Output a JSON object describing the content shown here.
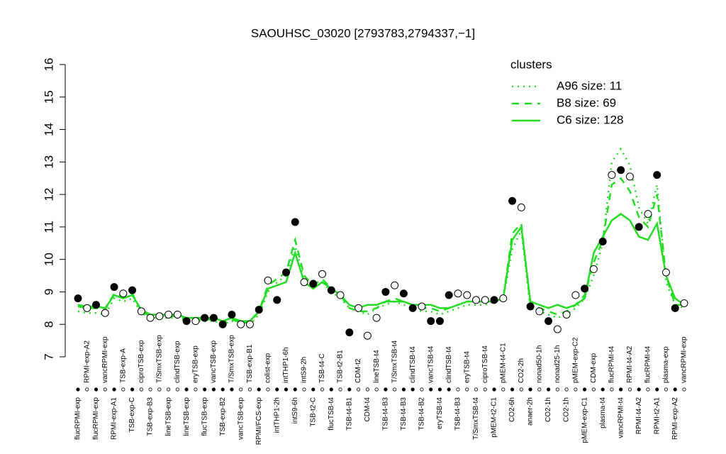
{
  "chart_data": {
    "type": "line",
    "title": "SAOUHSC_03020 [2793783,2794337,−1]",
    "legend_title": "clusters",
    "ylim": [
      7,
      16
    ],
    "yticks": [
      7,
      8,
      9,
      10,
      11,
      12,
      13,
      14,
      15,
      16
    ],
    "categories": [
      "flucRPMI-exp",
      "RPMI-exp-A2",
      "flucRPMI-exp",
      "vancRPMI-exp",
      "RPMI-exp-A1",
      "TSB-exp-A",
      "TSB-exp-C",
      "ciproTSB-exp",
      "TSB-exp-B3",
      "T/SmxTSB-exp",
      "lineTSB-exp",
      "clindTSB-exp",
      "lineTSB-exp",
      "eryTSB-exp",
      "flucTSB-exp",
      "vancTSB-exp",
      "TSB-exp-B2",
      "T/SmxTSB-exp",
      "vancTSB-exp",
      "TSB-exp-B1",
      "RPMI/FCS-exp",
      "colist-exp",
      "intTHP1-2h",
      "intTHP1-6h",
      "intS9-6h",
      "intS9-2h",
      "TSB-t2-C",
      "TSB-t4-C",
      "flucTSB-t4",
      "TSB-t2-B1",
      "TSB-t4-B1",
      "CDM-t2",
      "CDM-t4",
      "lineTSB-t4",
      "TSB-t4-B3",
      "T/SmxTSB-t4",
      "TSB-t4-B3",
      "clindTSB-t4",
      "TSB-t4-B2",
      "vancTSB-t4",
      "eryTSB-t4",
      "clindTSB-t4",
      "TSB-t4-B3",
      "eryTSB-t4",
      "T/SmxTSB-t4",
      "ciproTSB-t4",
      "pMEM-t2-C1",
      "pMEM-t4-C1",
      "CO2-6h",
      "CO2-2h",
      "anaer-2h",
      "nonad50-1h",
      "CO2-1h",
      "nonad25-1h",
      "CO2-1h",
      "pMEM-exp-C2",
      "pMEM-exp-C1",
      "CDM-exp",
      "plasma-t4",
      "flucRPMI-t4",
      "vancRPMI-t4",
      "RPMI-t4-A2",
      "RPMI-t4-A2",
      "flucRPMI-t4",
      "RPMI-t2-A1",
      "plasma-exp",
      "RPMI-exp-A2",
      "vancRPMI-exp"
    ],
    "values": [
      8.8,
      8.5,
      8.6,
      8.35,
      9.15,
      8.95,
      9.05,
      8.4,
      8.2,
      8.25,
      8.3,
      8.3,
      8.1,
      8.1,
      8.2,
      8.2,
      8.0,
      8.3,
      8.0,
      8.0,
      8.45,
      9.35,
      8.75,
      9.6,
      11.15,
      9.3,
      9.25,
      9.55,
      9.05,
      8.9,
      7.75,
      8.5,
      7.65,
      8.2,
      9.0,
      9.2,
      8.95,
      8.5,
      8.55,
      8.1,
      8.1,
      8.9,
      8.95,
      8.9,
      8.75,
      8.75,
      8.75,
      8.8,
      11.8,
      11.6,
      8.55,
      8.4,
      8.1,
      7.85,
      8.3,
      8.9,
      9.1,
      9.7,
      10.55,
      12.6,
      12.75,
      12.55,
      11.0,
      11.4,
      12.6,
      9.6,
      8.5,
      8.65
    ],
    "filled": [
      true,
      false,
      true,
      false,
      true,
      false,
      true,
      false,
      false,
      false,
      false,
      false,
      true,
      false,
      true,
      true,
      true,
      true,
      false,
      false,
      true,
      false,
      true,
      true,
      true,
      false,
      true,
      false,
      true,
      false,
      true,
      false,
      false,
      false,
      true,
      false,
      true,
      true,
      false,
      true,
      true,
      true,
      false,
      false,
      false,
      false,
      true,
      false,
      true,
      false,
      true,
      false,
      true,
      false,
      false,
      false,
      true,
      false,
      true,
      false,
      true,
      false,
      true,
      false,
      true,
      false,
      true,
      false
    ],
    "point_color": "#000000",
    "series": [
      {
        "name": "A96 size: 11",
        "color": "#22dd22",
        "style": "dotted",
        "values": [
          8.4,
          8.35,
          8.35,
          8.3,
          8.8,
          8.7,
          8.8,
          8.35,
          8.2,
          8.2,
          8.2,
          8.2,
          8.1,
          8.1,
          8.1,
          8.1,
          8.0,
          8.1,
          8.0,
          8.0,
          8.3,
          9.0,
          9.3,
          9.5,
          10.4,
          9.4,
          9.1,
          9.3,
          9.0,
          8.8,
          8.5,
          8.4,
          8.3,
          8.5,
          8.6,
          8.7,
          8.6,
          8.5,
          8.4,
          8.4,
          8.3,
          8.4,
          8.5,
          8.6,
          8.6,
          8.6,
          8.7,
          8.8,
          10.3,
          10.9,
          8.5,
          8.4,
          8.3,
          8.2,
          8.3,
          8.5,
          8.8,
          9.5,
          10.5,
          13.0,
          13.4,
          12.9,
          11.6,
          11.1,
          12.3,
          9.3,
          8.6,
          8.5
        ]
      },
      {
        "name": "B8 size: 69",
        "color": "#22dd22",
        "style": "dashed",
        "values": [
          8.55,
          8.5,
          8.5,
          8.45,
          8.95,
          8.85,
          8.95,
          8.4,
          8.25,
          8.25,
          8.25,
          8.25,
          8.15,
          8.15,
          8.15,
          8.15,
          8.05,
          8.15,
          8.05,
          8.05,
          8.4,
          9.2,
          9.4,
          9.6,
          10.6,
          9.5,
          9.2,
          9.4,
          9.1,
          8.9,
          8.5,
          8.4,
          8.4,
          8.5,
          8.7,
          8.8,
          8.7,
          8.6,
          8.5,
          8.5,
          8.4,
          8.5,
          8.6,
          8.7,
          8.7,
          8.7,
          8.7,
          8.8,
          10.8,
          11.1,
          8.6,
          8.5,
          8.4,
          8.3,
          8.4,
          8.6,
          8.9,
          9.9,
          10.6,
          12.3,
          12.5,
          12.1,
          11.3,
          11.0,
          12.0,
          9.5,
          8.6,
          8.6
        ]
      },
      {
        "name": "C6 size: 128",
        "color": "#22dd22",
        "style": "solid",
        "values": [
          8.6,
          8.55,
          8.55,
          8.5,
          8.9,
          8.8,
          8.9,
          8.45,
          8.3,
          8.3,
          8.3,
          8.3,
          8.2,
          8.2,
          8.2,
          8.2,
          8.1,
          8.2,
          8.1,
          8.1,
          8.4,
          9.1,
          9.2,
          9.3,
          10.2,
          9.3,
          9.1,
          9.3,
          9.1,
          8.9,
          8.6,
          8.5,
          8.6,
          8.6,
          8.7,
          8.7,
          8.7,
          8.6,
          8.6,
          8.6,
          8.5,
          8.5,
          8.6,
          8.7,
          8.7,
          8.7,
          8.7,
          8.8,
          10.6,
          11.0,
          8.7,
          8.6,
          8.5,
          8.6,
          8.5,
          8.6,
          8.8,
          10.2,
          10.7,
          11.2,
          11.4,
          11.2,
          10.7,
          10.6,
          11.1,
          9.5,
          8.8,
          8.6
        ]
      }
    ]
  }
}
